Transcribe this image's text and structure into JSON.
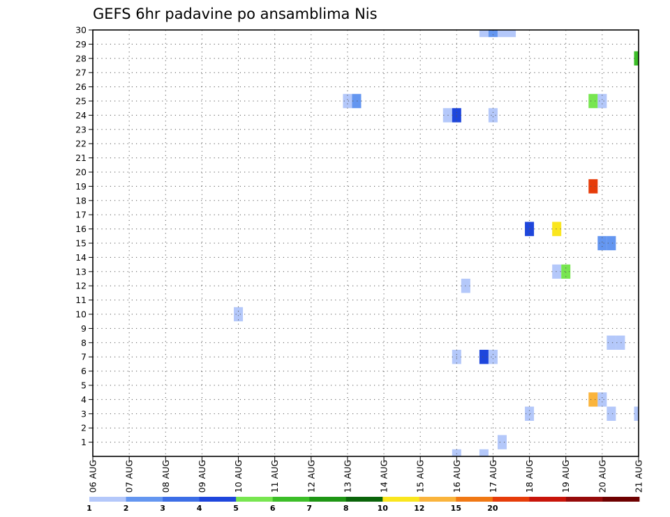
{
  "chart_data": {
    "type": "heatmap",
    "title": "GEFS 6hr padavine po ansamblima Nis",
    "xlabel": "",
    "ylabel": "",
    "x_range": [
      "06 AUG",
      "21 AUG"
    ],
    "y_range": [
      0,
      30
    ],
    "x_tick_labels": [
      "06 AUG",
      "07 AUG",
      "08 AUG",
      "09 AUG",
      "10 AUG",
      "11 AUG",
      "12 AUG",
      "13 AUG",
      "14 AUG",
      "15 AUG",
      "16 AUG",
      "17 AUG",
      "18 AUG",
      "19 AUG",
      "20 AUG",
      "21 AUG"
    ],
    "y_tick_labels": [
      "1",
      "2",
      "3",
      "4",
      "5",
      "6",
      "7",
      "8",
      "9",
      "10",
      "11",
      "12",
      "13",
      "14",
      "15",
      "16",
      "17",
      "18",
      "19",
      "20",
      "21",
      "22",
      "23",
      "24",
      "25",
      "26",
      "27",
      "28",
      "29",
      "30"
    ],
    "grid": true,
    "colorbar": {
      "labels": [
        "1",
        "2",
        "3",
        "4",
        "5",
        "6",
        "7",
        "8",
        "10",
        "12",
        "15",
        "20"
      ],
      "colors": [
        "#b4c8fa",
        "#6496f0",
        "#3c6ee6",
        "#1e46dc",
        "#78e650",
        "#3cbe28",
        "#1e9614",
        "#0a640a",
        "#fae61e",
        "#fab43c",
        "#f07814",
        "#e63c0a",
        "#c8140a",
        "#960a0a",
        "#6e0000"
      ]
    },
    "points": [
      {
        "day": 16.75,
        "member": 30,
        "value": 1.5
      },
      {
        "day": 17.0,
        "member": 30,
        "value": 2.5
      },
      {
        "day": 17.25,
        "member": 30,
        "value": 1.5
      },
      {
        "day": 17.5,
        "member": 30,
        "value": 1.5
      },
      {
        "day": 21.0,
        "member": 28,
        "value": 6
      },
      {
        "day": 13.0,
        "member": 25,
        "value": 1.5
      },
      {
        "day": 13.25,
        "member": 25,
        "value": 2.5
      },
      {
        "day": 19.75,
        "member": 25,
        "value": 5.5
      },
      {
        "day": 20.0,
        "member": 25,
        "value": 1.5
      },
      {
        "day": 15.75,
        "member": 24,
        "value": 1.5
      },
      {
        "day": 16.0,
        "member": 24,
        "value": 4
      },
      {
        "day": 17.0,
        "member": 24,
        "value": 1.5
      },
      {
        "day": 19.75,
        "member": 19,
        "value": 25
      },
      {
        "day": 18.0,
        "member": 16,
        "value": 4
      },
      {
        "day": 18.75,
        "member": 16,
        "value": 11
      },
      {
        "day": 20.0,
        "member": 15,
        "value": 2.5
      },
      {
        "day": 20.25,
        "member": 15,
        "value": 2.5
      },
      {
        "day": 18.75,
        "member": 13,
        "value": 1.5
      },
      {
        "day": 19.0,
        "member": 13,
        "value": 5.5
      },
      {
        "day": 16.25,
        "member": 12,
        "value": 1.5
      },
      {
        "day": 10.0,
        "member": 10,
        "value": 1.5
      },
      {
        "day": 20.25,
        "member": 8,
        "value": 1.5
      },
      {
        "day": 20.5,
        "member": 8,
        "value": 1.5
      },
      {
        "day": 16.0,
        "member": 7,
        "value": 1.5
      },
      {
        "day": 16.75,
        "member": 7,
        "value": 4
      },
      {
        "day": 17.0,
        "member": 7,
        "value": 1.5
      },
      {
        "day": 19.75,
        "member": 4,
        "value": 13
      },
      {
        "day": 20.0,
        "member": 4,
        "value": 1.5
      },
      {
        "day": 18.0,
        "member": 3,
        "value": 1.5
      },
      {
        "day": 20.25,
        "member": 3,
        "value": 1.5
      },
      {
        "day": 21.0,
        "member": 3,
        "value": 1.5
      },
      {
        "day": 17.25,
        "member": 1,
        "value": 1.5
      },
      {
        "day": 16.0,
        "member": 0,
        "value": 1.5
      },
      {
        "day": 16.75,
        "member": 0,
        "value": 1.5
      }
    ]
  }
}
